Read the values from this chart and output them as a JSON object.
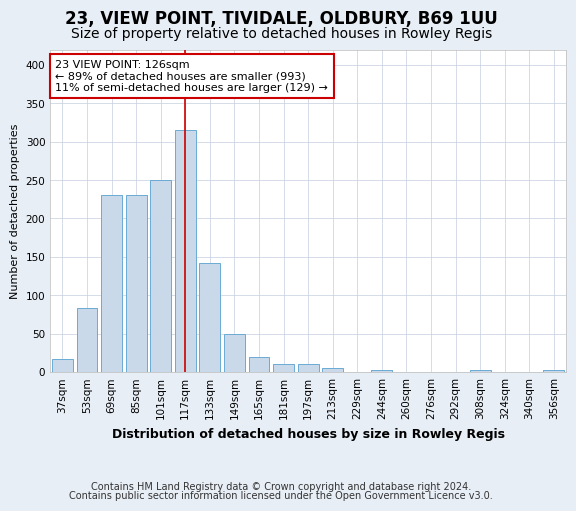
{
  "title": "23, VIEW POINT, TIVIDALE, OLDBURY, B69 1UU",
  "subtitle": "Size of property relative to detached houses in Rowley Regis",
  "xlabel": "Distribution of detached houses by size in Rowley Regis",
  "ylabel": "Number of detached properties",
  "categories": [
    "37sqm",
    "53sqm",
    "69sqm",
    "85sqm",
    "101sqm",
    "117sqm",
    "133sqm",
    "149sqm",
    "165sqm",
    "181sqm",
    "197sqm",
    "213sqm",
    "229sqm",
    "244sqm",
    "260sqm",
    "276sqm",
    "292sqm",
    "308sqm",
    "324sqm",
    "340sqm",
    "356sqm"
  ],
  "values": [
    17,
    84,
    230,
    230,
    250,
    315,
    142,
    50,
    20,
    10,
    10,
    5,
    0,
    3,
    0,
    0,
    0,
    3,
    0,
    0,
    2
  ],
  "bar_color": "#c9d9ea",
  "bar_edge_color": "#6aaad4",
  "vline_x_index": 5,
  "vline_color": "#cc0000",
  "annotation_line1": "23 VIEW POINT: 126sqm",
  "annotation_line2": "← 89% of detached houses are smaller (993)",
  "annotation_line3": "11% of semi-detached houses are larger (129) →",
  "annotation_box_color": "#ffffff",
  "annotation_box_edge": "#cc0000",
  "ylim": [
    0,
    420
  ],
  "yticks": [
    0,
    50,
    100,
    150,
    200,
    250,
    300,
    350,
    400
  ],
  "footer1": "Contains HM Land Registry data © Crown copyright and database right 2024.",
  "footer2": "Contains public sector information licensed under the Open Government Licence v3.0.",
  "bg_color": "#e8eef6",
  "plot_bg_color": "#ffffff",
  "title_fontsize": 12,
  "subtitle_fontsize": 10,
  "xlabel_fontsize": 9,
  "ylabel_fontsize": 8,
  "tick_fontsize": 7.5,
  "footer_fontsize": 7,
  "annotation_fontsize": 8
}
